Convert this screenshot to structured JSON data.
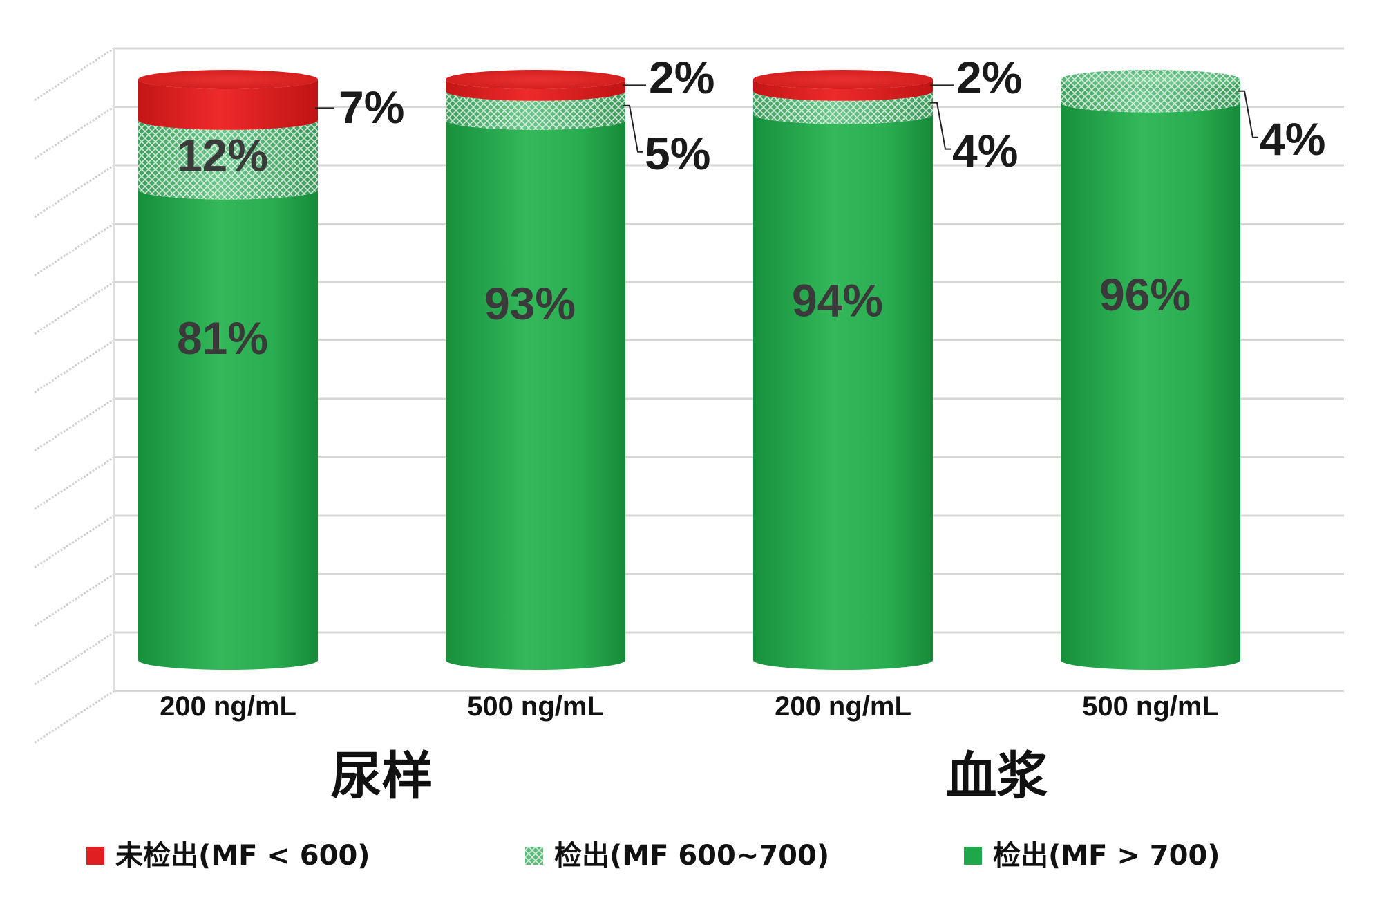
{
  "chart_data": {
    "type": "bar",
    "stacked": true,
    "style": "3d-cylinder",
    "categories": [
      "200 ng/mL",
      "500 ng/mL",
      "200 ng/mL",
      "500 ng/mL"
    ],
    "groups": [
      {
        "label": "尿样",
        "categories": [
          0,
          1
        ]
      },
      {
        "label": "血浆",
        "categories": [
          2,
          3
        ]
      }
    ],
    "ylim": [
      0,
      100
    ],
    "grid": true,
    "legend_position": "bottom",
    "series": [
      {
        "name": "检出(MF > 700)",
        "color": "#1fa84a",
        "pattern": "solid",
        "values": [
          81,
          93,
          94,
          96
        ],
        "labels": [
          "81%",
          "93%",
          "94%",
          "96%"
        ]
      },
      {
        "name": "检出(MF 600~700)",
        "color": "#5dba7a",
        "pattern": "crosshatch",
        "values": [
          12,
          5,
          4,
          4
        ],
        "labels": [
          "12%",
          "5%",
          "4%",
          "4%"
        ]
      },
      {
        "name": "未检出(MF < 600)",
        "color": "#e02020",
        "pattern": "solid",
        "values": [
          7,
          2,
          2,
          0
        ],
        "labels": [
          "7%",
          "2%",
          "2%",
          ""
        ]
      }
    ]
  }
}
